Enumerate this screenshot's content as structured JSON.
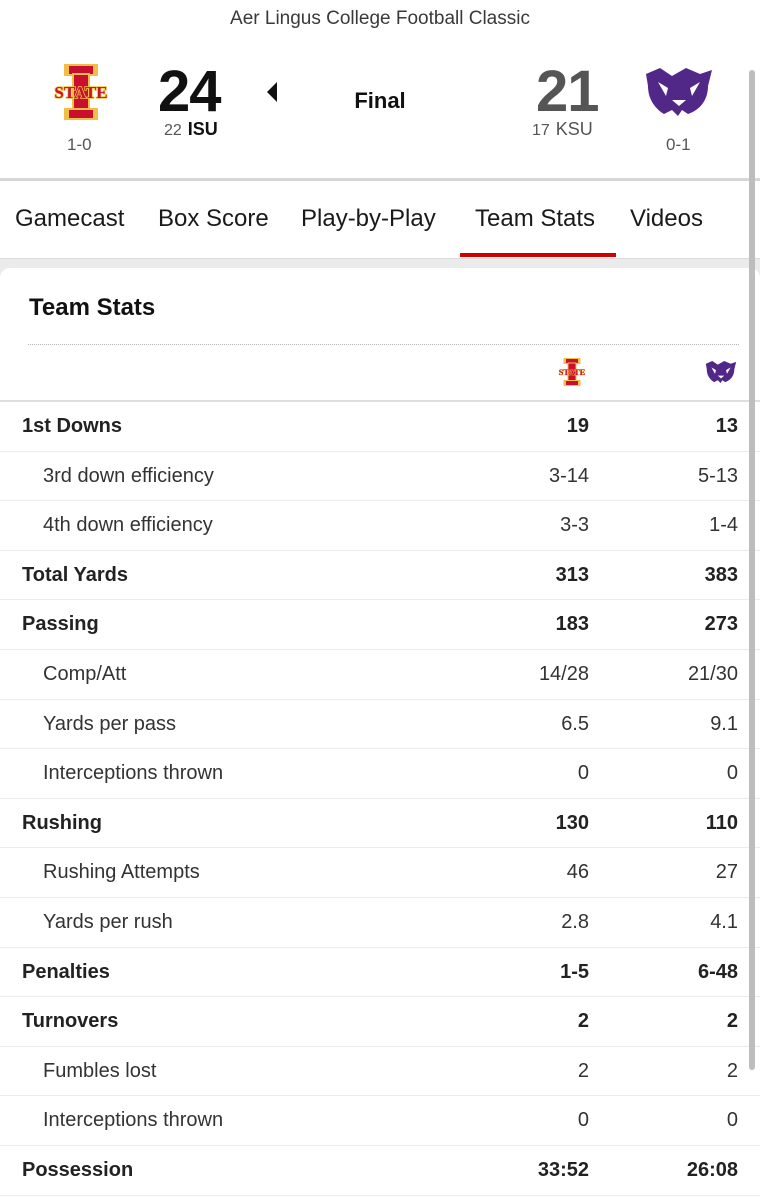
{
  "game": {
    "title": "Aer Lingus College Football Classic",
    "status": "Final"
  },
  "teams": {
    "isu": {
      "abbr": "ISU",
      "rank": "22",
      "score": "24",
      "record": "1-0",
      "logo_text": "STATE",
      "color": "#c8102e",
      "gold": "#f1be48"
    },
    "ksu": {
      "abbr": "KSU",
      "rank": "17",
      "score": "21",
      "record": "0-1",
      "color": "#512888"
    }
  },
  "tabs": [
    "Gamecast",
    "Box Score",
    "Play-by-Play",
    "Team Stats",
    "Videos"
  ],
  "active_tab": "Team Stats",
  "section": {
    "title": "Team Stats"
  },
  "stats": [
    {
      "label": "1st Downs",
      "isu": "19",
      "ksu": "13",
      "type": "main"
    },
    {
      "label": "3rd down efficiency",
      "isu": "3-14",
      "ksu": "5-13",
      "type": "sub"
    },
    {
      "label": "4th down efficiency",
      "isu": "3-3",
      "ksu": "1-4",
      "type": "sub"
    },
    {
      "label": "Total Yards",
      "isu": "313",
      "ksu": "383",
      "type": "main"
    },
    {
      "label": "Passing",
      "isu": "183",
      "ksu": "273",
      "type": "main"
    },
    {
      "label": "Comp/Att",
      "isu": "14/28",
      "ksu": "21/30",
      "type": "sub"
    },
    {
      "label": "Yards per pass",
      "isu": "6.5",
      "ksu": "9.1",
      "type": "sub"
    },
    {
      "label": "Interceptions thrown",
      "isu": "0",
      "ksu": "0",
      "type": "sub"
    },
    {
      "label": "Rushing",
      "isu": "130",
      "ksu": "110",
      "type": "main"
    },
    {
      "label": "Rushing Attempts",
      "isu": "46",
      "ksu": "27",
      "type": "sub"
    },
    {
      "label": "Yards per rush",
      "isu": "2.8",
      "ksu": "4.1",
      "type": "sub"
    },
    {
      "label": "Penalties",
      "isu": "1-5",
      "ksu": "6-48",
      "type": "main"
    },
    {
      "label": "Turnovers",
      "isu": "2",
      "ksu": "2",
      "type": "main"
    },
    {
      "label": "Fumbles lost",
      "isu": "2",
      "ksu": "2",
      "type": "sub"
    },
    {
      "label": "Interceptions thrown",
      "isu": "0",
      "ksu": "0",
      "type": "sub"
    },
    {
      "label": "Possession",
      "isu": "33:52",
      "ksu": "26:08",
      "type": "main"
    }
  ]
}
